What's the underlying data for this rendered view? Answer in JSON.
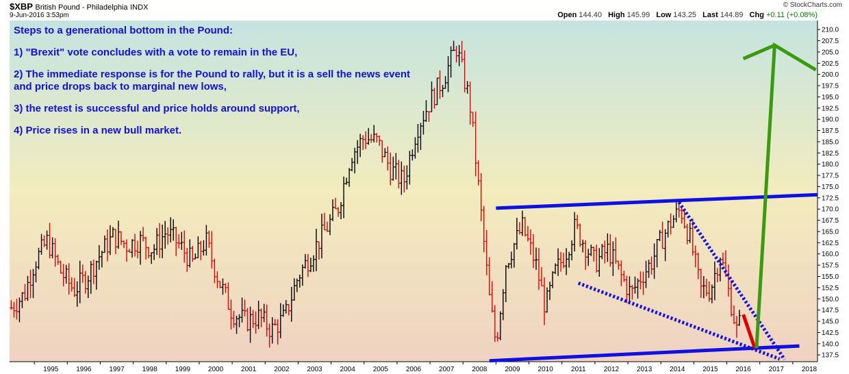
{
  "header": {
    "symbol": "$XBP",
    "description": "British Pound - Philadelphia",
    "exchange": "INDX",
    "date": "9-Jun-2016 3:53pm",
    "brand": "© StockCharts.com",
    "open_label": "Open",
    "open": "144.40",
    "high_label": "High",
    "high": "145.99",
    "low_label": "Low",
    "low": "143.25",
    "last_label": "Last",
    "last": "144.89",
    "chg_label": "Chg",
    "chg": "+0.11 (+0.08%)"
  },
  "annotation": {
    "title": "Steps to a generational bottom in the Pound:",
    "step1": "1) \"Brexit\" vote concludes with a vote to remain in the EU,",
    "step2": "2) The immediate response is for the Pound to rally, but it is a sell the news event and price drops back to marginal new lows,",
    "step3": "3) the retest is successful and price holds around support,",
    "step4": "4) Price rises in a new bull market."
  },
  "colors": {
    "up_bar": "#000000",
    "down_bar": "#e00000",
    "channel_line": "#1010e0",
    "projection_line": "#3a9a10",
    "drop_arrow": "#e00000",
    "bg_top": "#c5e4e0",
    "bg_mid": "#f2ecbe",
    "bg_bottom": "#f0d2c2"
  },
  "chart_data": {
    "type": "line",
    "title": "",
    "xlabel": "",
    "ylabel": "",
    "ylim": [
      136,
      212
    ],
    "xlim": [
      1994.25,
      2018.75
    ],
    "grid": false,
    "y_ticks": [
      "137.5",
      "140.0",
      "142.5",
      "145.0",
      "147.5",
      "150.0",
      "152.5",
      "155.0",
      "157.5",
      "160.0",
      "162.5",
      "165.0",
      "167.5",
      "170.0",
      "172.5",
      "175.0",
      "177.5",
      "180.0",
      "182.5",
      "185.0",
      "187.5",
      "190.0",
      "192.5",
      "195.0",
      "197.5",
      "200.0",
      "202.5",
      "205.0",
      "207.5",
      "210.0"
    ],
    "x_ticks": [
      "1995",
      "1996",
      "1997",
      "1998",
      "1999",
      "2000",
      "2001",
      "2002",
      "2003",
      "2004",
      "2005",
      "2006",
      "2007",
      "2008",
      "2009",
      "2010",
      "2011",
      "2012",
      "2013",
      "2014",
      "2015",
      "2016",
      "2017",
      "2018"
    ],
    "price_series": {
      "name": "",
      "x": [
        1994.3,
        1994.7,
        1995.0,
        1995.4,
        1995.8,
        1996.2,
        1996.6,
        1997.0,
        1997.4,
        1997.8,
        1998.2,
        1998.6,
        1999.0,
        1999.4,
        1999.8,
        2000.2,
        2000.6,
        2001.0,
        2001.4,
        2001.8,
        2002.2,
        2002.6,
        2003.0,
        2003.4,
        2003.8,
        2004.2,
        2004.6,
        2005.0,
        2005.4,
        2005.8,
        2006.2,
        2006.6,
        2007.0,
        2007.4,
        2007.8,
        2008.2,
        2008.4,
        2008.6,
        2008.8,
        2009.0,
        2009.3,
        2009.6,
        2009.8,
        2010.2,
        2010.5,
        2010.8,
        2011.1,
        2011.4,
        2011.7,
        2012.0,
        2012.4,
        2012.8,
        2013.1,
        2013.4,
        2013.7,
        2014.0,
        2014.3,
        2014.6,
        2014.9,
        2015.2,
        2015.5,
        2015.8,
        2016.1,
        2016.3,
        2016.45
      ],
      "y": [
        148,
        151,
        158,
        163,
        156,
        152,
        155,
        160,
        164,
        162,
        163,
        161,
        165,
        162,
        158,
        163,
        154,
        147,
        145,
        146,
        143,
        146,
        155,
        160,
        165,
        170,
        182,
        186,
        185,
        179,
        176,
        188,
        194,
        199,
        206,
        194,
        180,
        165,
        150,
        140,
        158,
        163,
        166,
        158,
        148,
        156,
        160,
        166,
        162,
        158,
        161,
        155,
        151,
        155,
        158,
        163,
        167,
        170,
        163,
        152,
        152,
        160,
        150,
        143,
        145.5
      ]
    },
    "overlays": [
      {
        "name": "upper-channel",
        "from": [
          2009.0,
          170.2
        ],
        "to": [
          2018.75,
          173.2
        ]
      },
      {
        "name": "lower-channel",
        "from": [
          2008.8,
          136.2
        ],
        "to": [
          2018.2,
          139.5
        ]
      },
      {
        "name": "falling-resistance",
        "from": [
          2014.55,
          171.5
        ],
        "to": [
          2017.75,
          136.5
        ]
      },
      {
        "name": "falling-support",
        "from": [
          2011.5,
          153.5
        ],
        "to": [
          2017.6,
          136.6
        ]
      },
      {
        "name": "projected-drop",
        "from": [
          2016.5,
          146.5
        ],
        "to": [
          2016.85,
          139.0
        ]
      },
      {
        "name": "projected-rise",
        "points": [
          [
            2016.9,
            139.0
          ],
          [
            2017.45,
            206.5
          ],
          [
            2018.7,
            201.0
          ]
        ]
      },
      {
        "name": "projected-rise-left",
        "from": [
          2016.5,
          203.5
        ],
        "to": [
          2017.45,
          206.5
        ]
      }
    ]
  }
}
